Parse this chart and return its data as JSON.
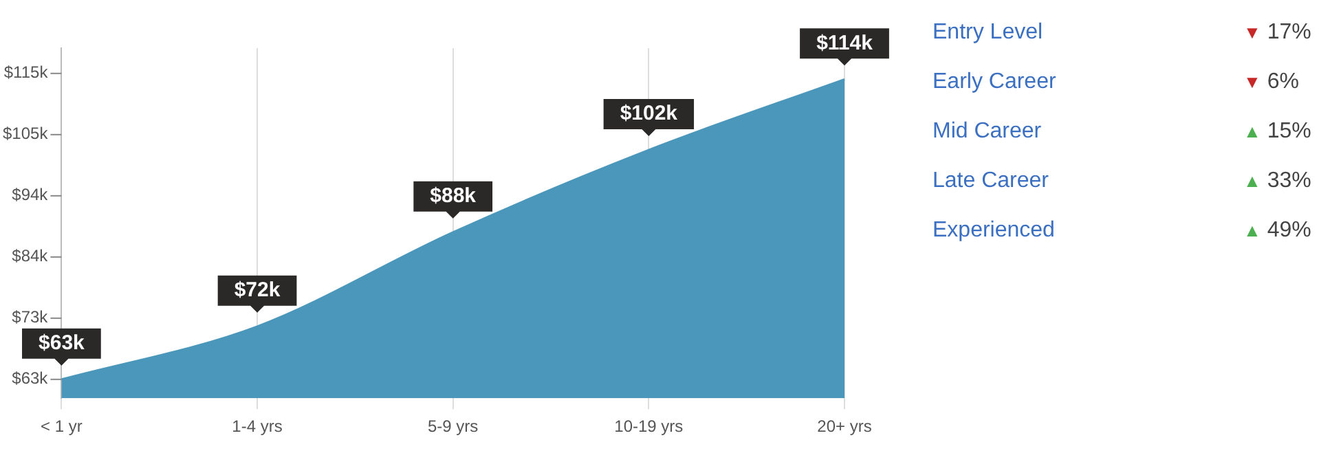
{
  "chart_data": [
    {
      "type": "area",
      "categories": [
        "< 1 yr",
        "1-4 yrs",
        "5-9 yrs",
        "10-19 yrs",
        "20+ yrs"
      ],
      "series": [
        {
          "color": "#4a97bb",
          "values": [
            63,
            72,
            88,
            102,
            114
          ],
          "value_labels": [
            "$63k",
            "$72k",
            "$88k",
            "$102k",
            "$114k"
          ]
        }
      ],
      "ylim": [
        59.8,
        119.3
      ],
      "yticks": [
        {
          "value": 63,
          "label": "$63k"
        },
        {
          "value": 73.4,
          "label": "$73k"
        },
        {
          "value": 83.8,
          "label": "$84k"
        },
        {
          "value": 94.2,
          "label": "$94k"
        },
        {
          "value": 104.6,
          "label": "$105k"
        },
        {
          "value": 115,
          "label": "$115k"
        }
      ],
      "grid": "x",
      "legend": false
    },
    {
      "type": "other",
      "categories": [
        "Entry Level",
        "Early Career",
        "Mid Career",
        "Late Career",
        "Experienced"
      ],
      "value_labels": [
        "▼ 17%",
        "▼ 6%",
        "▲ 15%",
        "▲ 33%",
        "▲ 49%"
      ],
      "colors": [
        "#c62828",
        "#c62828",
        "#4caf50",
        "#4caf50",
        "#4caf50"
      ]
    }
  ]
}
